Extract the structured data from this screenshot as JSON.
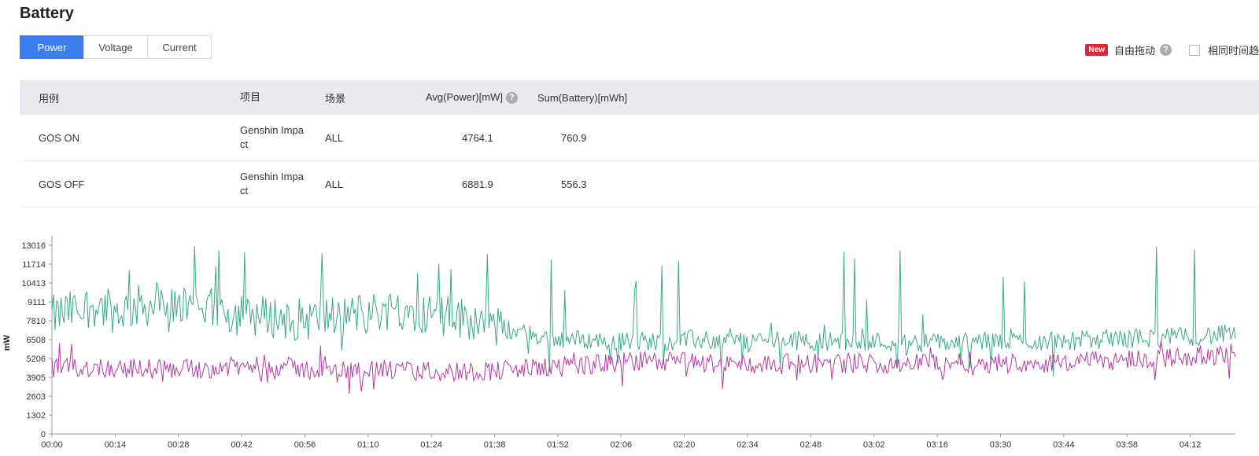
{
  "page": {
    "title": "Battery"
  },
  "tabs": [
    {
      "label": "Power",
      "active": true
    },
    {
      "label": "Voltage",
      "active": false
    },
    {
      "label": "Current",
      "active": false
    }
  ],
  "toolbar": {
    "new_badge": "New",
    "free_drag_label": "自由拖动",
    "same_time_label": "相同时间趋",
    "same_time_checked": false
  },
  "table": {
    "headers": [
      "用例",
      "项目",
      "场景",
      "Avg(Power)[mW]",
      "Sum(Battery)[mWh]"
    ],
    "rows": [
      {
        "case": "GOS ON",
        "project": "Genshin Impact",
        "scene": "ALL",
        "avg_power": "4764.1",
        "sum_battery": "760.9"
      },
      {
        "case": "GOS OFF",
        "project": "Genshin Impact",
        "scene": "ALL",
        "avg_power": "6881.9",
        "sum_battery": "556.3"
      }
    ]
  },
  "chart_data": {
    "type": "line",
    "ylabel": "mW",
    "y_ticks": [
      0,
      1302,
      2603,
      3905,
      5206,
      6508,
      7810,
      9111,
      10413,
      11714,
      13016
    ],
    "ylim": [
      0,
      13016
    ],
    "x_ticks": [
      "00:00",
      "00:14",
      "00:28",
      "00:42",
      "00:56",
      "01:10",
      "01:24",
      "01:38",
      "01:52",
      "02:06",
      "02:20",
      "02:34",
      "02:48",
      "03:02",
      "03:16",
      "03:30",
      "03:44",
      "03:58",
      "04:12"
    ],
    "x_minutes": [
      0,
      262
    ],
    "grid": false,
    "series": [
      {
        "color": "#3aa88a",
        "points": [
          [
            0,
            8100
          ],
          [
            6,
            8600
          ],
          [
            10,
            8900
          ],
          [
            14,
            8400
          ],
          [
            20,
            8900
          ],
          [
            28,
            8600
          ],
          [
            34,
            8700
          ],
          [
            40,
            8300
          ],
          [
            48,
            8100
          ],
          [
            56,
            7900
          ],
          [
            62,
            8100
          ],
          [
            70,
            8300
          ],
          [
            76,
            8700
          ],
          [
            82,
            8400
          ],
          [
            88,
            8100
          ],
          [
            94,
            7900
          ],
          [
            98,
            7400
          ],
          [
            104,
            7000
          ],
          [
            110,
            6600
          ],
          [
            118,
            6500
          ],
          [
            126,
            6400
          ],
          [
            134,
            6400
          ],
          [
            142,
            6500
          ],
          [
            150,
            6400
          ],
          [
            160,
            6500
          ],
          [
            170,
            6400
          ],
          [
            180,
            6400
          ],
          [
            190,
            6300
          ],
          [
            200,
            6300
          ],
          [
            210,
            6400
          ],
          [
            220,
            6400
          ],
          [
            230,
            6500
          ],
          [
            240,
            6600
          ],
          [
            250,
            6700
          ],
          [
            262,
            6900
          ]
        ],
        "spike_max": 13000
      },
      {
        "color": "#b23aa6",
        "points": [
          [
            0,
            4500
          ],
          [
            10,
            4600
          ],
          [
            20,
            4500
          ],
          [
            30,
            4500
          ],
          [
            40,
            4600
          ],
          [
            50,
            4700
          ],
          [
            60,
            4300
          ],
          [
            70,
            4500
          ],
          [
            80,
            4300
          ],
          [
            90,
            4300
          ],
          [
            100,
            4400
          ],
          [
            110,
            4600
          ],
          [
            120,
            4800
          ],
          [
            130,
            5000
          ],
          [
            140,
            5000
          ],
          [
            150,
            4800
          ],
          [
            160,
            4800
          ],
          [
            170,
            4900
          ],
          [
            180,
            4900
          ],
          [
            190,
            4900
          ],
          [
            200,
            5000
          ],
          [
            210,
            4900
          ],
          [
            220,
            4900
          ],
          [
            230,
            5000
          ],
          [
            240,
            5200
          ],
          [
            250,
            5300
          ],
          [
            262,
            5600
          ]
        ],
        "spike_max": 6500
      }
    ]
  }
}
